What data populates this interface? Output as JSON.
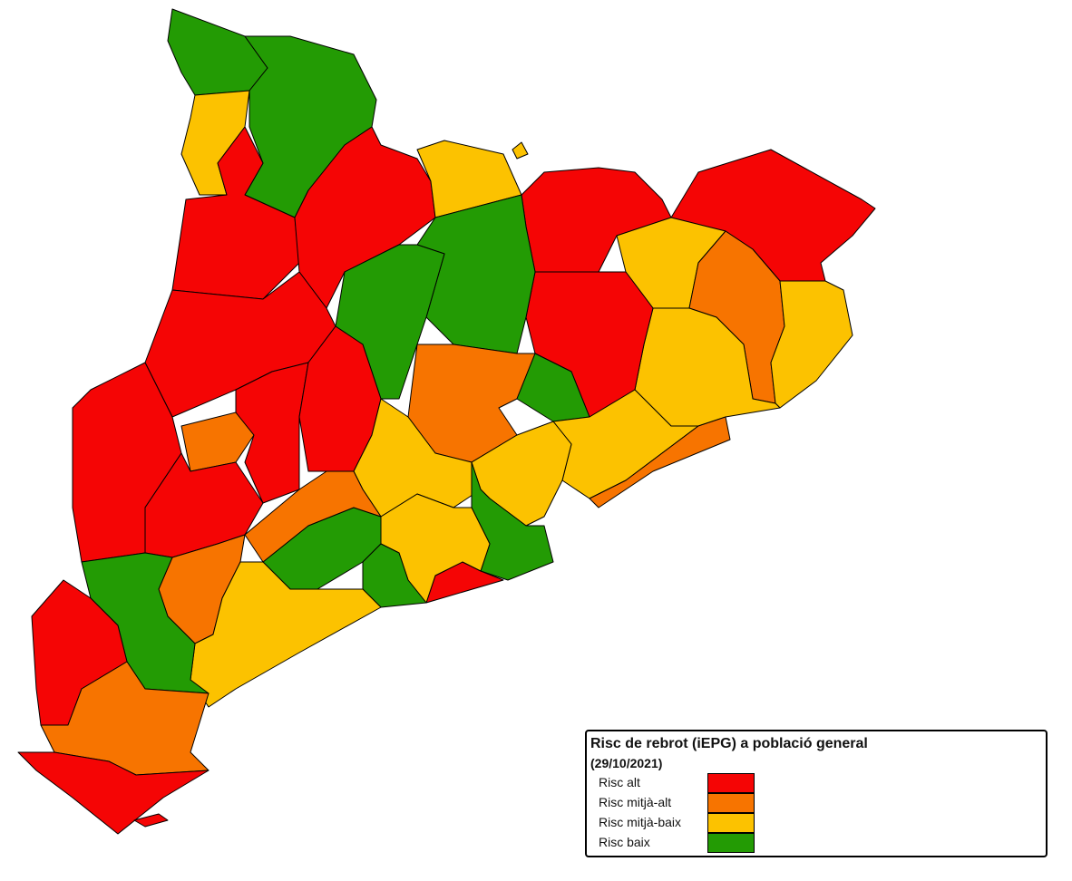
{
  "legend": {
    "title": "Risc de rebrot (iEPG) a població general",
    "subtitle": "(29/10/2021)",
    "items": [
      {
        "label": "Risc alt",
        "color": "#f50505"
      },
      {
        "label": "Risc mitjà-alt",
        "color": "#f77400"
      },
      {
        "label": "Risc mitjà-baix",
        "color": "#fcc200"
      },
      {
        "label": "Risc baix",
        "color": "#239b04"
      }
    ]
  }
}
